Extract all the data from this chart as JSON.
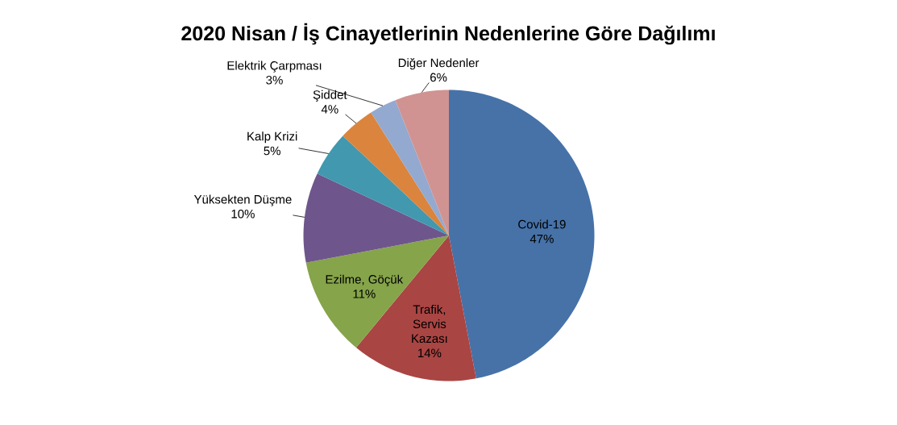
{
  "chart_data": {
    "type": "pie",
    "title": "2020 Nisan / İş Cinayetlerinin Nedenlerine Göre Dağılımı",
    "categories": [
      "Covid-19",
      "Trafik, Servis Kazası",
      "Ezilme, Göçük",
      "Yüksekten Düşme",
      "Kalp Krizi",
      "Şiddet",
      "Elektrik Çarpması",
      "Diğer Nedenler"
    ],
    "values": [
      47,
      14,
      11,
      10,
      5,
      4,
      3,
      6
    ],
    "colors": [
      "#4672a8",
      "#a94543",
      "#86a44a",
      "#6e568c",
      "#4198af",
      "#db843d",
      "#93a9cf",
      "#d09392"
    ],
    "value_labels": [
      "47%",
      "14%",
      "11%",
      "10%",
      "5%",
      "4%",
      "3%",
      "6%"
    ]
  }
}
